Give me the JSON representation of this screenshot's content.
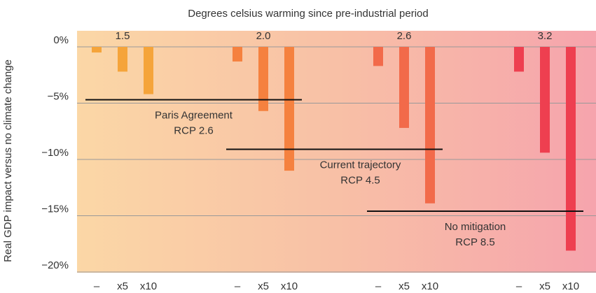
{
  "chart_data": {
    "type": "bar",
    "title": "Degrees celsius warming since pre-industrial period",
    "y_label": "Real GDP impact versus no climate change",
    "categories": [
      "–",
      "x5",
      "x10"
    ],
    "series": [
      {
        "name": "1.5",
        "color": "#f5a43a",
        "values": [
          -0.5,
          -2.2,
          -4.2
        ]
      },
      {
        "name": "2.0",
        "color": "#f5813f",
        "values": [
          -1.3,
          -5.7,
          -11.0
        ]
      },
      {
        "name": "2.6",
        "color": "#f26a4a",
        "values": [
          -1.7,
          -7.2,
          -13.9
        ]
      },
      {
        "name": "3.2",
        "color": "#ee3f50",
        "values": [
          -2.2,
          -9.4,
          -18.1
        ]
      }
    ],
    "ylim": [
      0,
      -20
    ],
    "yticks": [
      {
        "value": 0,
        "label": "0%"
      },
      {
        "value": -5,
        "label": "−5%"
      },
      {
        "value": -10,
        "label": "−10%"
      },
      {
        "value": -15,
        "label": "−15%"
      },
      {
        "value": -20,
        "label": "−20%"
      }
    ],
    "grid": true,
    "reference_lines": [
      {
        "value": -4.7,
        "label": [
          "Paris Agreement",
          "RCP 2.6"
        ]
      },
      {
        "value": -9.1,
        "label": [
          "Current trajectory",
          "RCP 4.5"
        ]
      },
      {
        "value": -14.6,
        "label": [
          "No mitigation",
          "RCP 8.5"
        ]
      }
    ]
  }
}
